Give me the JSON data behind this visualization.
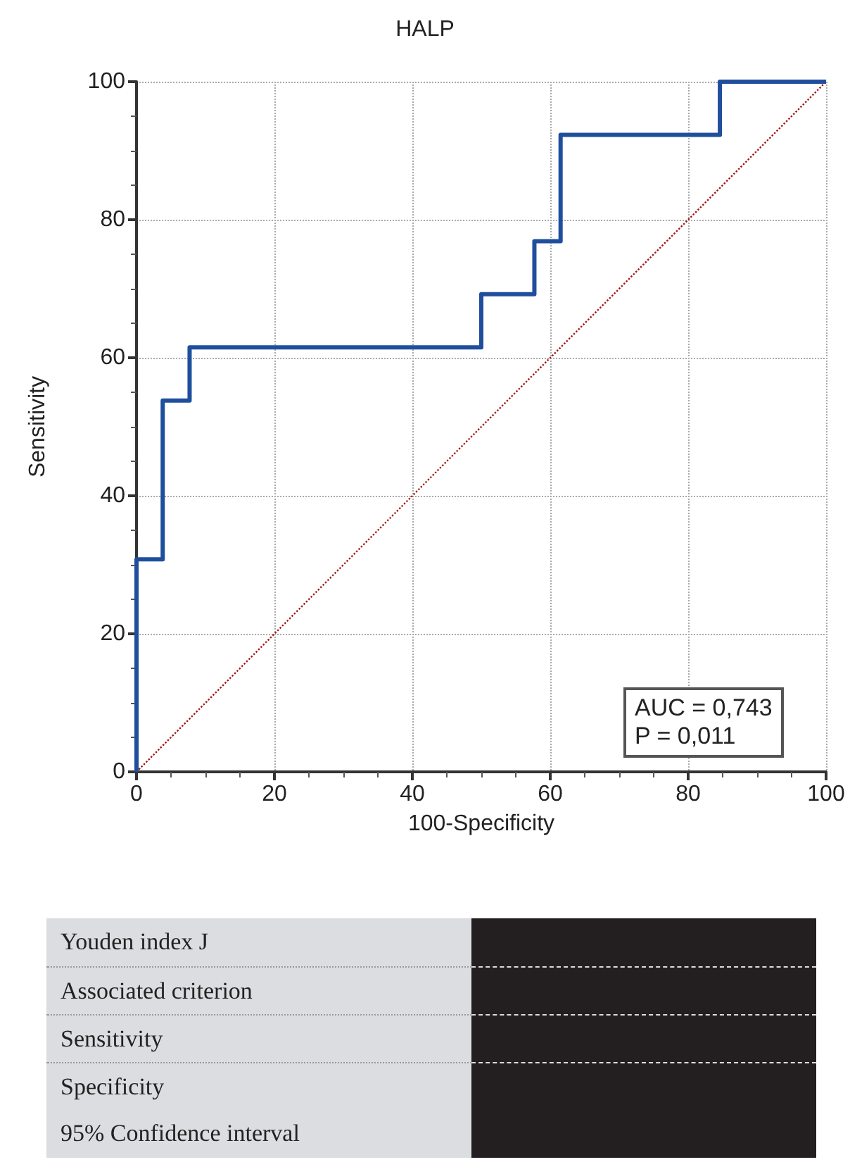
{
  "chart_data": {
    "type": "line",
    "title": "HALP",
    "xlabel": "100-Specificity",
    "ylabel": "Sensitivity",
    "xlim": [
      0,
      100
    ],
    "xticks": [
      0,
      20,
      40,
      60,
      80,
      100
    ],
    "ylim": [
      0,
      100
    ],
    "yticks": [
      0,
      20,
      40,
      60,
      80,
      100
    ],
    "grid": true,
    "series": [
      {
        "color": "#1f4f9c",
        "line_style": "solid",
        "x": [
          0,
          0,
          3.8,
          3.8,
          7.7,
          7.7,
          50,
          50,
          57.7,
          57.7,
          61.5,
          61.5,
          84.6,
          84.6,
          100
        ],
        "values": [
          0,
          30.8,
          30.8,
          53.8,
          53.8,
          61.5,
          61.5,
          69.2,
          69.2,
          76.9,
          76.9,
          92.3,
          92.3,
          100,
          100
        ]
      },
      {
        "color": "#a01818",
        "line_style": "dotted",
        "x": [
          0,
          100
        ],
        "values": [
          0,
          100
        ]
      }
    ],
    "annotations": [
      "AUC = 0,743",
      "P = 0,011",
      "Youden index J",
      "Associated criterion",
      "Sensitivity",
      "Specificity",
      "95% Confidence interval"
    ]
  }
}
